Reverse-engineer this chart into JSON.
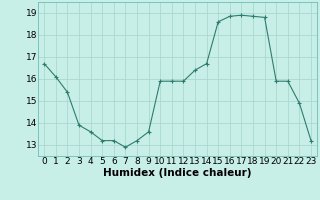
{
  "x": [
    0,
    1,
    2,
    3,
    4,
    5,
    6,
    7,
    8,
    9,
    10,
    11,
    12,
    13,
    14,
    15,
    16,
    17,
    18,
    19,
    20,
    21,
    22,
    23
  ],
  "y": [
    16.7,
    16.1,
    15.4,
    13.9,
    13.6,
    13.2,
    13.2,
    12.9,
    13.2,
    13.6,
    15.9,
    15.9,
    15.9,
    16.4,
    16.7,
    18.6,
    18.85,
    18.9,
    18.85,
    18.8,
    15.9,
    15.9,
    14.9,
    13.2
  ],
  "line_color": "#2d7d6e",
  "marker": "+",
  "marker_color": "#2d7d6e",
  "bg_color": "#c8eee8",
  "grid_color": "#aad8d0",
  "xlabel": "Humidex (Indice chaleur)",
  "xlabel_fontsize": 7.5,
  "tick_fontsize": 6.5,
  "ylim": [
    12.5,
    19.5
  ],
  "yticks": [
    13,
    14,
    15,
    16,
    17,
    18,
    19
  ],
  "xticks": [
    0,
    1,
    2,
    3,
    4,
    5,
    6,
    7,
    8,
    9,
    10,
    11,
    12,
    13,
    14,
    15,
    16,
    17,
    18,
    19,
    20,
    21,
    22,
    23
  ],
  "xlim": [
    -0.5,
    23.5
  ]
}
